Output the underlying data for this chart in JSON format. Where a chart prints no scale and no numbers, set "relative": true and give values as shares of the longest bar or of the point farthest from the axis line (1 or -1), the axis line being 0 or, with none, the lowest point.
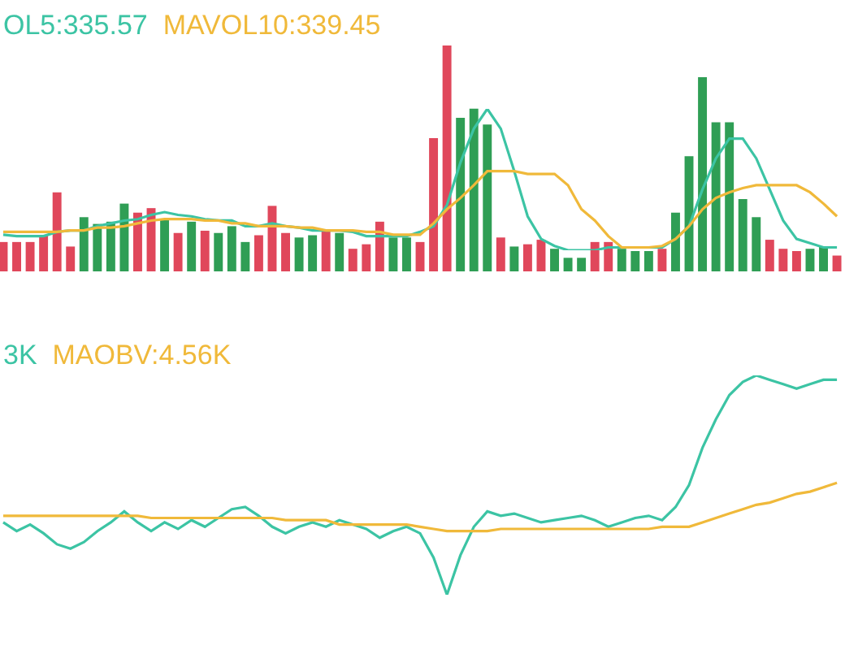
{
  "chart_data": [
    {
      "type": "bar",
      "relative": true,
      "categories": [
        null,
        null,
        null,
        null,
        null,
        null,
        null,
        null,
        null,
        null,
        null,
        null,
        null,
        null,
        null,
        null,
        null,
        null,
        null,
        null,
        null,
        null,
        null,
        null,
        null,
        null,
        null,
        null,
        null,
        null,
        null,
        null,
        null,
        null,
        null,
        null,
        null,
        null,
        null,
        null,
        null,
        null,
        null,
        null,
        null,
        null,
        null,
        null,
        null,
        null,
        null,
        null,
        null,
        null,
        null,
        null,
        null,
        null,
        null,
        null,
        null,
        null,
        null
      ],
      "series": [
        {
          "colors": [
            "#e0475b",
            "#e0475b",
            "#e0475b",
            "#e0475b",
            "#e0475b",
            "#e0475b",
            "#2f9e55",
            "#2f9e55",
            "#2f9e55",
            "#2f9e55",
            "#e0475b",
            "#e0475b",
            "#2f9e55",
            "#e0475b",
            "#2f9e55",
            "#e0475b",
            "#2f9e55",
            "#2f9e55",
            "#2f9e55",
            "#e0475b",
            "#e0475b",
            "#e0475b",
            "#2f9e55",
            "#2f9e55",
            "#e0475b",
            "#2f9e55",
            "#e0475b",
            "#e0475b",
            "#e0475b",
            "#2f9e55",
            "#2f9e55",
            "#e0475b",
            "#e0475b",
            "#e0475b",
            "#2f9e55",
            "#2f9e55",
            "#2f9e55",
            "#e0475b",
            "#2f9e55",
            "#e0475b",
            "#e0475b",
            "#2f9e55",
            "#2f9e55",
            "#2f9e55",
            "#e0475b",
            "#e0475b",
            "#2f9e55",
            "#2f9e55",
            "#2f9e55",
            "#e0475b",
            "#2f9e55",
            "#2f9e55",
            "#2f9e55",
            "#2f9e55",
            "#2f9e55",
            "#2f9e55",
            "#2f9e55",
            "#e0475b",
            "#e0475b",
            "#e0475b",
            "#2f9e55",
            "#2f9e55",
            "#e0475b"
          ],
          "values": [
            0.13,
            0.13,
            0.13,
            0.16,
            0.35,
            0.11,
            0.24,
            0.21,
            0.22,
            0.3,
            0.26,
            0.28,
            0.23,
            0.17,
            0.22,
            0.18,
            0.17,
            0.2,
            0.13,
            0.16,
            0.29,
            0.17,
            0.15,
            0.16,
            0.18,
            0.17,
            0.1,
            0.12,
            0.22,
            0.15,
            0.15,
            0.13,
            0.59,
            1.0,
            0.68,
            0.72,
            0.65,
            0.15,
            0.11,
            0.12,
            0.14,
            0.1,
            0.06,
            0.06,
            0.13,
            0.13,
            0.1,
            0.09,
            0.09,
            0.1,
            0.26,
            0.51,
            0.86,
            0.66,
            0.66,
            0.32,
            0.24,
            0.14,
            0.1,
            0.09,
            0.1,
            0.11,
            0.07
          ]
        }
      ]
    },
    {
      "type": "line",
      "relative": true,
      "categories": [
        null,
        null,
        null,
        null,
        null,
        null,
        null,
        null,
        null,
        null,
        null,
        null,
        null,
        null,
        null,
        null,
        null,
        null,
        null,
        null,
        null,
        null,
        null,
        null,
        null,
        null,
        null,
        null,
        null,
        null,
        null,
        null,
        null,
        null,
        null,
        null,
        null,
        null,
        null,
        null,
        null,
        null,
        null,
        null,
        null,
        null,
        null,
        null,
        null,
        null,
        null,
        null,
        null,
        null,
        null,
        null,
        null,
        null,
        null,
        null,
        null,
        null,
        null
      ],
      "series": [
        {
          "name": "OL5:335.57",
          "color": "#3cc4a4",
          "values": [
            0.11,
            0.1,
            0.1,
            0.1,
            0.13,
            0.14,
            0.14,
            0.17,
            0.19,
            0.21,
            0.22,
            0.25,
            0.27,
            0.25,
            0.24,
            0.22,
            0.21,
            0.21,
            0.17,
            0.17,
            0.19,
            0.17,
            0.16,
            0.14,
            0.14,
            0.14,
            0.13,
            0.1,
            0.1,
            0.1,
            0.1,
            0.13,
            0.17,
            0.32,
            0.62,
            0.86,
            1,
            0.86,
            0.56,
            0.24,
            0.08,
            0.03,
            0,
            0,
            0,
            0.02,
            0.02,
            0.02,
            0.02,
            0.02,
            0.08,
            0.17,
            0.43,
            0.65,
            0.79,
            0.79,
            0.65,
            0.43,
            0.21,
            0.08,
            0.05,
            0.02,
            0.02
          ]
        },
        {
          "name": "MAVOL10:339.45",
          "color": "#f0b93a",
          "values": [
            0.13,
            0.13,
            0.13,
            0.13,
            0.13,
            0.14,
            0.14,
            0.16,
            0.16,
            0.17,
            0.19,
            0.21,
            0.22,
            0.22,
            0.22,
            0.21,
            0.21,
            0.19,
            0.19,
            0.17,
            0.17,
            0.17,
            0.16,
            0.16,
            0.14,
            0.14,
            0.14,
            0.13,
            0.13,
            0.11,
            0.11,
            0.11,
            0.19,
            0.29,
            0.37,
            0.46,
            0.56,
            0.56,
            0.56,
            0.54,
            0.54,
            0.54,
            0.46,
            0.29,
            0.21,
            0.1,
            0.02,
            0.02,
            0.02,
            0.03,
            0.08,
            0.17,
            0.29,
            0.37,
            0.41,
            0.44,
            0.46,
            0.46,
            0.46,
            0.46,
            0.41,
            0.33,
            0.24
          ]
        }
      ]
    },
    {
      "type": "line",
      "relative": true,
      "categories": [
        null,
        null,
        null,
        null,
        null,
        null,
        null,
        null,
        null,
        null,
        null,
        null,
        null,
        null,
        null,
        null,
        null,
        null,
        null,
        null,
        null,
        null,
        null,
        null,
        null,
        null,
        null,
        null,
        null,
        null,
        null,
        null,
        null,
        null,
        null,
        null,
        null,
        null,
        null,
        null,
        null,
        null,
        null,
        null,
        null,
        null,
        null,
        null,
        null,
        null,
        null,
        null,
        null,
        null,
        null,
        null,
        null,
        null,
        null,
        null,
        null,
        null,
        null
      ],
      "series": [
        {
          "name": "3K",
          "color": "#3cc4a4",
          "values": [
            0.33,
            0.29,
            0.32,
            0.28,
            0.23,
            0.21,
            0.24,
            0.29,
            0.33,
            0.38,
            0.33,
            0.29,
            0.33,
            0.3,
            0.34,
            0.31,
            0.35,
            0.39,
            0.4,
            0.36,
            0.31,
            0.28,
            0.31,
            0.33,
            0.31,
            0.34,
            0.32,
            0.3,
            0.26,
            0.29,
            0.31,
            0.28,
            0.17,
            0,
            0.18,
            0.31,
            0.38,
            0.36,
            0.37,
            0.35,
            0.33,
            0.34,
            0.35,
            0.36,
            0.34,
            0.31,
            0.33,
            0.35,
            0.36,
            0.34,
            0.4,
            0.5,
            0.67,
            0.8,
            0.91,
            0.97,
            1,
            0.98,
            0.96,
            0.94,
            0.96,
            0.98,
            0.98
          ]
        },
        {
          "name": "MAOBV:4.56K",
          "color": "#f0b93a",
          "values": [
            0.36,
            0.36,
            0.36,
            0.36,
            0.36,
            0.36,
            0.36,
            0.36,
            0.36,
            0.36,
            0.36,
            0.35,
            0.35,
            0.35,
            0.35,
            0.35,
            0.35,
            0.35,
            0.35,
            0.35,
            0.35,
            0.34,
            0.34,
            0.34,
            0.34,
            0.32,
            0.32,
            0.32,
            0.32,
            0.32,
            0.32,
            0.31,
            0.3,
            0.29,
            0.29,
            0.29,
            0.29,
            0.3,
            0.3,
            0.3,
            0.3,
            0.3,
            0.3,
            0.3,
            0.3,
            0.3,
            0.3,
            0.3,
            0.3,
            0.31,
            0.31,
            0.31,
            0.33,
            0.35,
            0.37,
            0.39,
            0.41,
            0.42,
            0.44,
            0.46,
            0.47,
            0.49,
            0.51
          ]
        }
      ]
    }
  ]
}
